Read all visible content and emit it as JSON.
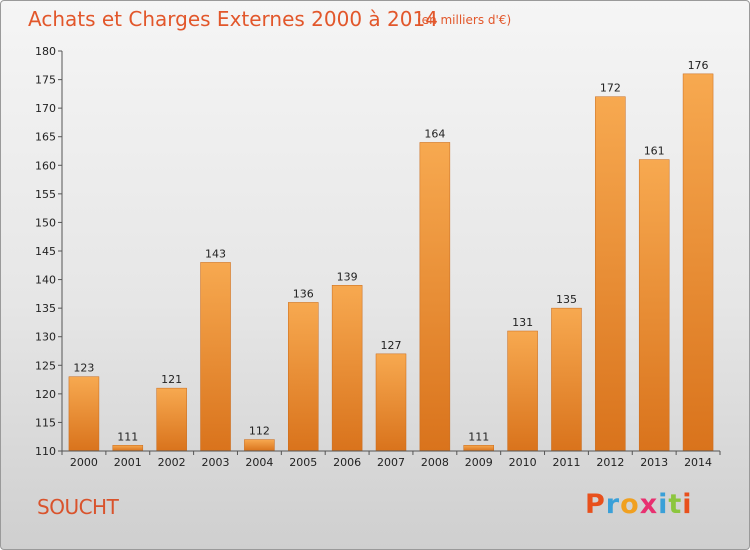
{
  "title": "Achats et Charges Externes 2000 à 2014",
  "subtitle": "(en milliers d'€)",
  "commune": "SOUCHT",
  "logo": {
    "letters": [
      "P",
      "r",
      "o",
      "x",
      "i",
      "t",
      "i"
    ],
    "colors": [
      "#e8501c",
      "#3aa0d8",
      "#f0a020",
      "#e83070",
      "#3aa0d8",
      "#8cc63e",
      "#e8501c"
    ]
  },
  "colors": {
    "bar_light": "#f7a950",
    "bar_dark": "#d9731c",
    "axis": "#555555",
    "grid": "#cfcfcf",
    "accent": "#e2572b"
  },
  "chart_data": {
    "type": "bar",
    "title": "Achats et Charges Externes 2000 à 2014",
    "xlabel": "",
    "ylabel": "",
    "categories": [
      "2000",
      "2001",
      "2002",
      "2003",
      "2004",
      "2005",
      "2006",
      "2007",
      "2008",
      "2009",
      "2010",
      "2011",
      "2012",
      "2013",
      "2014"
    ],
    "values": [
      123,
      111,
      121,
      143,
      112,
      136,
      139,
      127,
      164,
      111,
      131,
      135,
      172,
      161,
      176
    ],
    "ylim": [
      110,
      180
    ],
    "yticks": [
      110,
      115,
      120,
      125,
      130,
      135,
      140,
      145,
      150,
      155,
      160,
      165,
      170,
      175,
      180
    ],
    "grid": false,
    "data_labels": true
  }
}
